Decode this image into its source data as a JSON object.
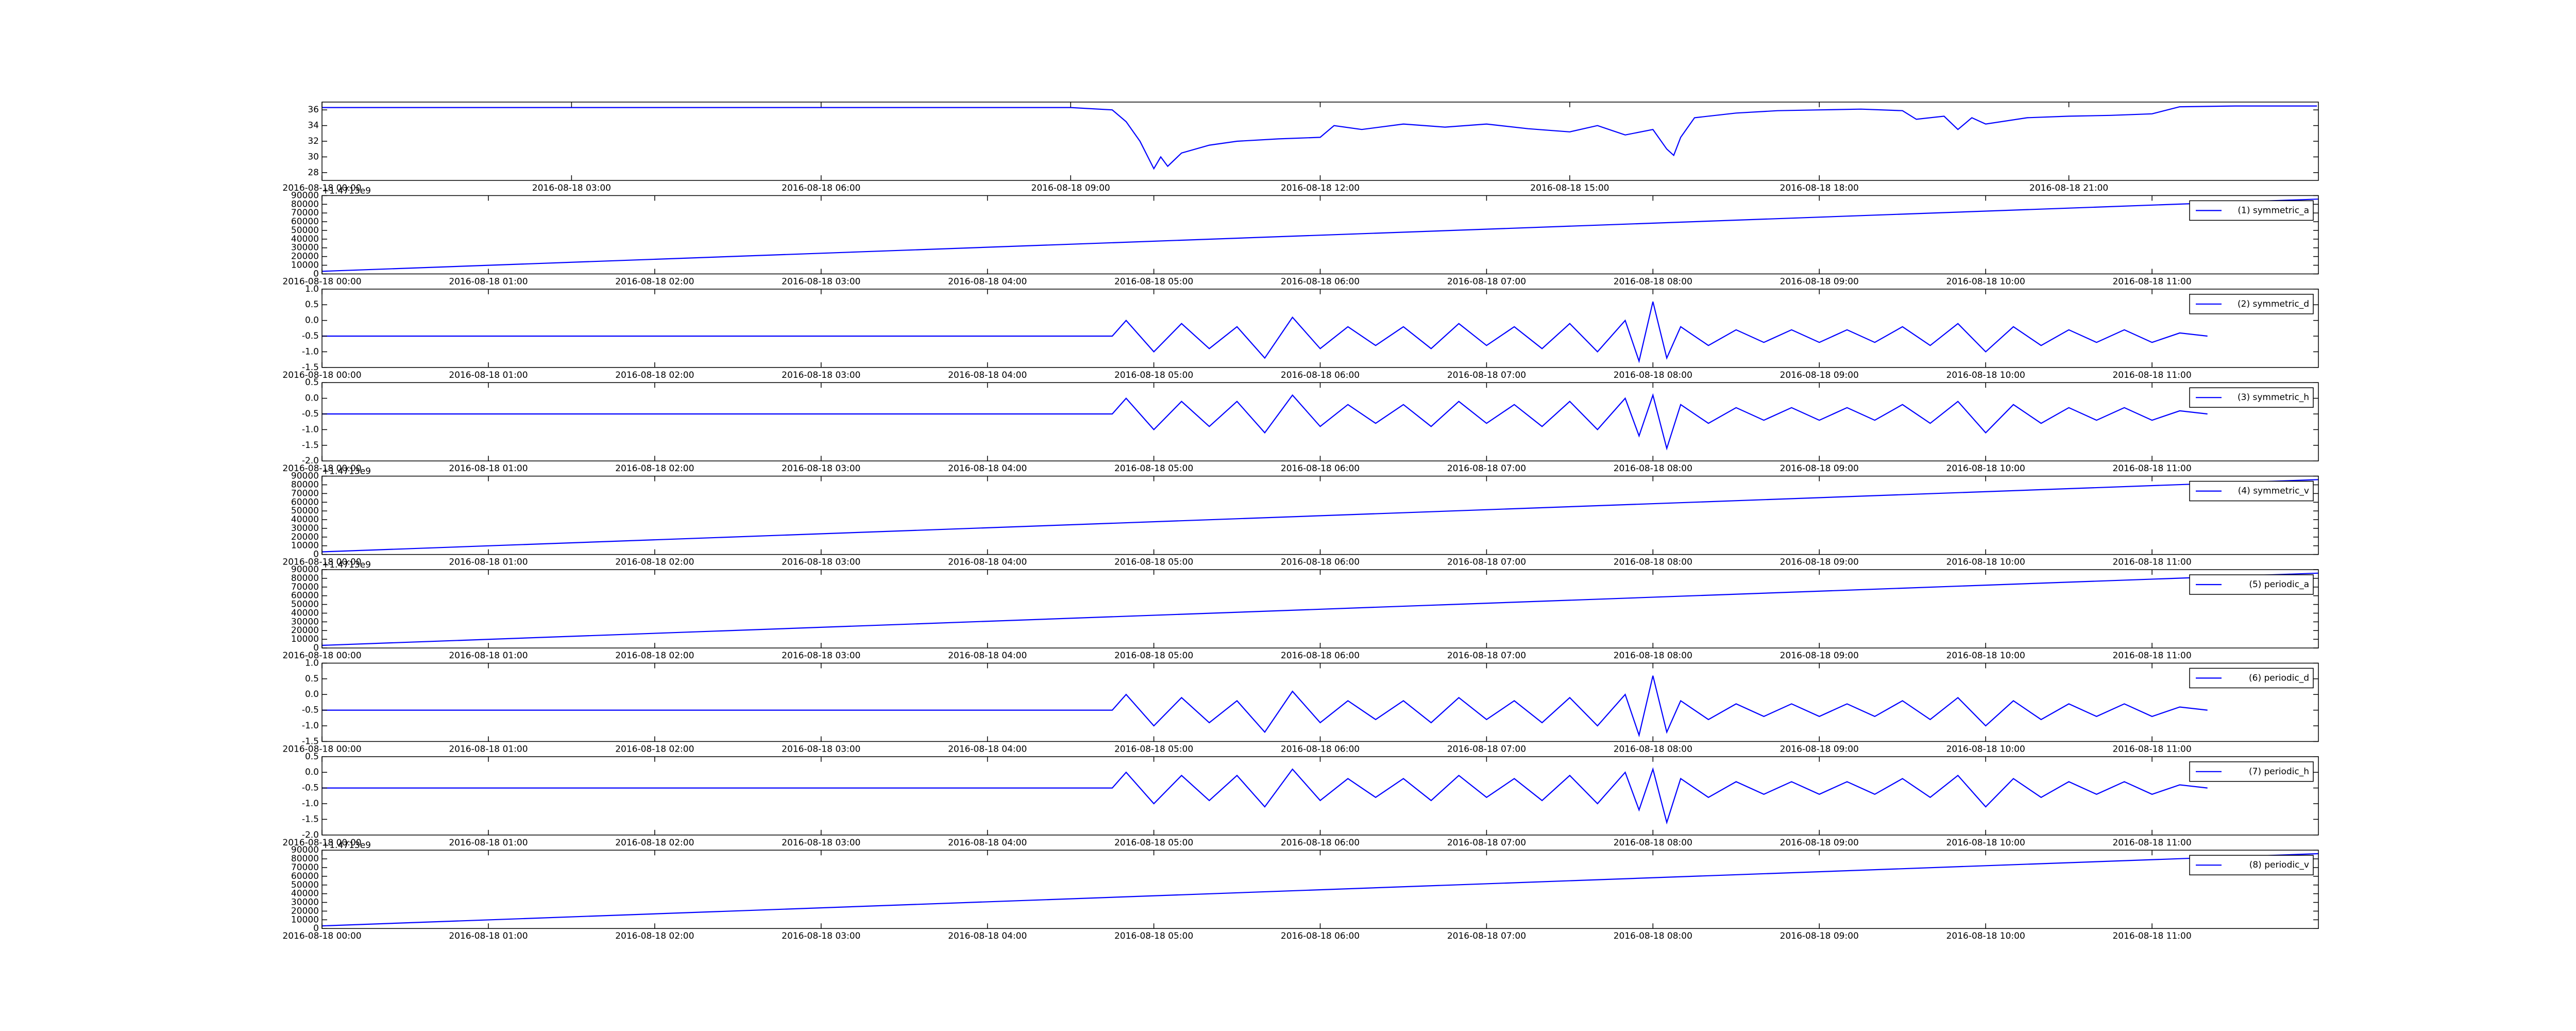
{
  "chart_data": [
    {
      "type": "line",
      "x": [
        "2016-08-18 00:00",
        "2016-08-18 09:00",
        "2016-08-18 09:30",
        "2016-08-18 09:40",
        "2016-08-18 09:50",
        "2016-08-18 10:00",
        "2016-08-18 10:05",
        "2016-08-18 10:10",
        "2016-08-18 10:20",
        "2016-08-18 10:40",
        "2016-08-18 11:00",
        "2016-08-18 11:30",
        "2016-08-18 12:00",
        "2016-08-18 12:10",
        "2016-08-18 12:30",
        "2016-08-18 13:00",
        "2016-08-18 13:30",
        "2016-08-18 14:00",
        "2016-08-18 14:30",
        "2016-08-18 15:00",
        "2016-08-18 15:20",
        "2016-08-18 15:40",
        "2016-08-18 16:00",
        "2016-08-18 16:10",
        "2016-08-18 16:15",
        "2016-08-18 16:20",
        "2016-08-18 16:30",
        "2016-08-18 17:00",
        "2016-08-18 17:30",
        "2016-08-18 18:00",
        "2016-08-18 18:30",
        "2016-08-18 19:00",
        "2016-08-18 19:10",
        "2016-08-18 19:30",
        "2016-08-18 19:40",
        "2016-08-18 19:50",
        "2016-08-18 20:00",
        "2016-08-18 20:30",
        "2016-08-18 21:00",
        "2016-08-18 21:30",
        "2016-08-18 22:00",
        "2016-08-18 22:20",
        "2016-08-18 23:00",
        "2016-08-18 23:59"
      ],
      "series": [
        {
          "color": "#0000ff",
          "values": [
            36.3,
            36.3,
            36.0,
            34.5,
            32,
            28.5,
            30,
            28.8,
            30.5,
            31.5,
            32,
            32.3,
            32.5,
            34,
            33.5,
            34.2,
            33.8,
            34.2,
            33.6,
            33.2,
            34,
            32.8,
            33.5,
            31,
            30.2,
            32.5,
            35,
            35.6,
            35.9,
            36,
            36.1,
            35.9,
            34.8,
            35.2,
            33.5,
            35,
            34.2,
            35,
            35.2,
            35.3,
            35.5,
            36.4,
            36.5,
            36.5
          ]
        }
      ],
      "xlim": [
        "2016-08-18 00:00",
        "2016-08-19 00:00"
      ],
      "xticks": [
        "2016-08-18 00:00",
        "2016-08-18 03:00",
        "2016-08-18 06:00",
        "2016-08-18 09:00",
        "2016-08-18 12:00",
        "2016-08-18 15:00",
        "2016-08-18 18:00",
        "2016-08-18 21:00"
      ],
      "ylim": [
        27,
        37
      ],
      "yticks": [
        28,
        30,
        32,
        34,
        36
      ]
    },
    {
      "type": "line",
      "x": [
        "2016-08-18 00:00",
        "2016-08-18 12:00"
      ],
      "series": [
        {
          "name": "(1) symmetric_a",
          "color": "#0000ff",
          "values": [
            3000,
            86000
          ]
        }
      ],
      "offset_text": "+1.4713e9",
      "legend": "upper right",
      "xlim": [
        "2016-08-18 00:00",
        "2016-08-18 12:00"
      ],
      "xticks": [
        "2016-08-18 00:00",
        "2016-08-18 01:00",
        "2016-08-18 02:00",
        "2016-08-18 03:00",
        "2016-08-18 04:00",
        "2016-08-18 05:00",
        "2016-08-18 06:00",
        "2016-08-18 07:00",
        "2016-08-18 08:00",
        "2016-08-18 09:00",
        "2016-08-18 10:00",
        "2016-08-18 11:00"
      ],
      "ylim": [
        0,
        90000
      ],
      "yticks": [
        0,
        10000,
        20000,
        30000,
        40000,
        50000,
        60000,
        70000,
        80000,
        90000
      ]
    },
    {
      "type": "line",
      "x": [
        "2016-08-18 00:00",
        "2016-08-18 04:45",
        "2016-08-18 04:50",
        "2016-08-18 05:00",
        "2016-08-18 05:10",
        "2016-08-18 05:20",
        "2016-08-18 05:30",
        "2016-08-18 05:40",
        "2016-08-18 05:50",
        "2016-08-18 06:00",
        "2016-08-18 06:10",
        "2016-08-18 06:20",
        "2016-08-18 06:30",
        "2016-08-18 06:40",
        "2016-08-18 06:50",
        "2016-08-18 07:00",
        "2016-08-18 07:10",
        "2016-08-18 07:20",
        "2016-08-18 07:30",
        "2016-08-18 07:40",
        "2016-08-18 07:50",
        "2016-08-18 07:55",
        "2016-08-18 08:00",
        "2016-08-18 08:05",
        "2016-08-18 08:10",
        "2016-08-18 08:20",
        "2016-08-18 08:30",
        "2016-08-18 08:40",
        "2016-08-18 08:50",
        "2016-08-18 09:00",
        "2016-08-18 09:10",
        "2016-08-18 09:20",
        "2016-08-18 09:30",
        "2016-08-18 09:40",
        "2016-08-18 09:50",
        "2016-08-18 10:00",
        "2016-08-18 10:10",
        "2016-08-18 10:20",
        "2016-08-18 10:30",
        "2016-08-18 10:40",
        "2016-08-18 10:50",
        "2016-08-18 11:00",
        "2016-08-18 11:10",
        "2016-08-18 11:20"
      ],
      "series": [
        {
          "name": "(2) symmetric_d",
          "color": "#0000ff",
          "values": [
            -0.5,
            -0.5,
            0.0,
            -1.0,
            -0.1,
            -0.9,
            -0.2,
            -1.2,
            0.1,
            -0.9,
            -0.2,
            -0.8,
            -0.2,
            -0.9,
            -0.1,
            -0.8,
            -0.2,
            -0.9,
            -0.1,
            -1.0,
            0.0,
            -1.3,
            0.6,
            -1.2,
            -0.2,
            -0.8,
            -0.3,
            -0.7,
            -0.3,
            -0.7,
            -0.3,
            -0.7,
            -0.2,
            -0.8,
            -0.1,
            -1.0,
            -0.2,
            -0.8,
            -0.3,
            -0.7,
            -0.3,
            -0.7,
            -0.4,
            -0.5
          ]
        }
      ],
      "legend": "upper right",
      "xlim": [
        "2016-08-18 00:00",
        "2016-08-18 12:00"
      ],
      "xticks": [
        "2016-08-18 00:00",
        "2016-08-18 01:00",
        "2016-08-18 02:00",
        "2016-08-18 03:00",
        "2016-08-18 04:00",
        "2016-08-18 05:00",
        "2016-08-18 06:00",
        "2016-08-18 07:00",
        "2016-08-18 08:00",
        "2016-08-18 09:00",
        "2016-08-18 10:00",
        "2016-08-18 11:00"
      ],
      "ylim": [
        -1.5,
        1.0
      ],
      "yticks": [
        {
          "value": -1.5,
          "label": "-1.5"
        },
        {
          "value": -1,
          "label": "-1.0"
        },
        {
          "value": -0.5,
          "label": "-0.5"
        },
        {
          "value": 0,
          "label": "0.0"
        },
        {
          "value": 0.5,
          "label": "0.5"
        },
        {
          "value": 1,
          "label": "1.0"
        }
      ]
    },
    {
      "type": "line",
      "x": [
        "2016-08-18 00:00",
        "2016-08-18 04:45",
        "2016-08-18 04:50",
        "2016-08-18 05:00",
        "2016-08-18 05:10",
        "2016-08-18 05:20",
        "2016-08-18 05:30",
        "2016-08-18 05:40",
        "2016-08-18 05:50",
        "2016-08-18 06:00",
        "2016-08-18 06:10",
        "2016-08-18 06:20",
        "2016-08-18 06:30",
        "2016-08-18 06:40",
        "2016-08-18 06:50",
        "2016-08-18 07:00",
        "2016-08-18 07:10",
        "2016-08-18 07:20",
        "2016-08-18 07:30",
        "2016-08-18 07:40",
        "2016-08-18 07:50",
        "2016-08-18 07:55",
        "2016-08-18 08:00",
        "2016-08-18 08:05",
        "2016-08-18 08:10",
        "2016-08-18 08:20",
        "2016-08-18 08:30",
        "2016-08-18 08:40",
        "2016-08-18 08:50",
        "2016-08-18 09:00",
        "2016-08-18 09:10",
        "2016-08-18 09:20",
        "2016-08-18 09:30",
        "2016-08-18 09:40",
        "2016-08-18 09:50",
        "2016-08-18 10:00",
        "2016-08-18 10:10",
        "2016-08-18 10:20",
        "2016-08-18 10:30",
        "2016-08-18 10:40",
        "2016-08-18 10:50",
        "2016-08-18 11:00",
        "2016-08-18 11:10",
        "2016-08-18 11:20"
      ],
      "series": [
        {
          "name": "(3) symmetric_h",
          "color": "#0000ff",
          "values": [
            -0.5,
            -0.5,
            0.0,
            -1.0,
            -0.1,
            -0.9,
            -0.1,
            -1.1,
            0.1,
            -0.9,
            -0.2,
            -0.8,
            -0.2,
            -0.9,
            -0.1,
            -0.8,
            -0.2,
            -0.9,
            -0.1,
            -1.0,
            0.0,
            -1.2,
            0.1,
            -1.6,
            -0.2,
            -0.8,
            -0.3,
            -0.7,
            -0.3,
            -0.7,
            -0.3,
            -0.7,
            -0.2,
            -0.8,
            -0.1,
            -1.1,
            -0.2,
            -0.8,
            -0.3,
            -0.7,
            -0.3,
            -0.7,
            -0.4,
            -0.5
          ]
        }
      ],
      "legend": "upper right",
      "xlim": [
        "2016-08-18 00:00",
        "2016-08-18 12:00"
      ],
      "xticks": [
        "2016-08-18 00:00",
        "2016-08-18 01:00",
        "2016-08-18 02:00",
        "2016-08-18 03:00",
        "2016-08-18 04:00",
        "2016-08-18 05:00",
        "2016-08-18 06:00",
        "2016-08-18 07:00",
        "2016-08-18 08:00",
        "2016-08-18 09:00",
        "2016-08-18 10:00",
        "2016-08-18 11:00"
      ],
      "ylim": [
        -2.0,
        0.5
      ],
      "yticks": [
        {
          "value": -2,
          "label": "-2.0"
        },
        {
          "value": -1.5,
          "label": "-1.5"
        },
        {
          "value": -1,
          "label": "-1.0"
        },
        {
          "value": -0.5,
          "label": "-0.5"
        },
        {
          "value": 0,
          "label": "0.0"
        },
        {
          "value": 0.5,
          "label": "0.5"
        }
      ]
    },
    {
      "type": "line",
      "x": [
        "2016-08-18 00:00",
        "2016-08-18 12:00"
      ],
      "series": [
        {
          "name": "(4) symmetric_v",
          "color": "#0000ff",
          "values": [
            3000,
            86000
          ]
        }
      ],
      "offset_text": "+1.4713e9",
      "legend": "upper right",
      "xlim": [
        "2016-08-18 00:00",
        "2016-08-18 12:00"
      ],
      "xticks": [
        "2016-08-18 00:00",
        "2016-08-18 01:00",
        "2016-08-18 02:00",
        "2016-08-18 03:00",
        "2016-08-18 04:00",
        "2016-08-18 05:00",
        "2016-08-18 06:00",
        "2016-08-18 07:00",
        "2016-08-18 08:00",
        "2016-08-18 09:00",
        "2016-08-18 10:00",
        "2016-08-18 11:00"
      ],
      "ylim": [
        0,
        90000
      ],
      "yticks": [
        0,
        10000,
        20000,
        30000,
        40000,
        50000,
        60000,
        70000,
        80000,
        90000
      ]
    },
    {
      "type": "line",
      "x": [
        "2016-08-18 00:00",
        "2016-08-18 12:00"
      ],
      "series": [
        {
          "name": "(5) periodic_a",
          "color": "#0000ff",
          "values": [
            3000,
            86000
          ]
        }
      ],
      "offset_text": "+1.4713e9",
      "legend": "upper right",
      "xlim": [
        "2016-08-18 00:00",
        "2016-08-18 12:00"
      ],
      "xticks": [
        "2016-08-18 00:00",
        "2016-08-18 01:00",
        "2016-08-18 02:00",
        "2016-08-18 03:00",
        "2016-08-18 04:00",
        "2016-08-18 05:00",
        "2016-08-18 06:00",
        "2016-08-18 07:00",
        "2016-08-18 08:00",
        "2016-08-18 09:00",
        "2016-08-18 10:00",
        "2016-08-18 11:00"
      ],
      "ylim": [
        0,
        90000
      ],
      "yticks": [
        0,
        10000,
        20000,
        30000,
        40000,
        50000,
        60000,
        70000,
        80000,
        90000
      ]
    },
    {
      "type": "line",
      "x": [
        "2016-08-18 00:00",
        "2016-08-18 04:45",
        "2016-08-18 04:50",
        "2016-08-18 05:00",
        "2016-08-18 05:10",
        "2016-08-18 05:20",
        "2016-08-18 05:30",
        "2016-08-18 05:40",
        "2016-08-18 05:50",
        "2016-08-18 06:00",
        "2016-08-18 06:10",
        "2016-08-18 06:20",
        "2016-08-18 06:30",
        "2016-08-18 06:40",
        "2016-08-18 06:50",
        "2016-08-18 07:00",
        "2016-08-18 07:10",
        "2016-08-18 07:20",
        "2016-08-18 07:30",
        "2016-08-18 07:40",
        "2016-08-18 07:50",
        "2016-08-18 07:55",
        "2016-08-18 08:00",
        "2016-08-18 08:05",
        "2016-08-18 08:10",
        "2016-08-18 08:20",
        "2016-08-18 08:30",
        "2016-08-18 08:40",
        "2016-08-18 08:50",
        "2016-08-18 09:00",
        "2016-08-18 09:10",
        "2016-08-18 09:20",
        "2016-08-18 09:30",
        "2016-08-18 09:40",
        "2016-08-18 09:50",
        "2016-08-18 10:00",
        "2016-08-18 10:10",
        "2016-08-18 10:20",
        "2016-08-18 10:30",
        "2016-08-18 10:40",
        "2016-08-18 10:50",
        "2016-08-18 11:00",
        "2016-08-18 11:10",
        "2016-08-18 11:20"
      ],
      "series": [
        {
          "name": "(6) periodic_d",
          "color": "#0000ff",
          "values": [
            -0.5,
            -0.5,
            0.0,
            -1.0,
            -0.1,
            -0.9,
            -0.2,
            -1.2,
            0.1,
            -0.9,
            -0.2,
            -0.8,
            -0.2,
            -0.9,
            -0.1,
            -0.8,
            -0.2,
            -0.9,
            -0.1,
            -1.0,
            0.0,
            -1.3,
            0.6,
            -1.2,
            -0.2,
            -0.8,
            -0.3,
            -0.7,
            -0.3,
            -0.7,
            -0.3,
            -0.7,
            -0.2,
            -0.8,
            -0.1,
            -1.0,
            -0.2,
            -0.8,
            -0.3,
            -0.7,
            -0.3,
            -0.7,
            -0.4,
            -0.5
          ]
        }
      ],
      "legend": "upper right",
      "xlim": [
        "2016-08-18 00:00",
        "2016-08-18 12:00"
      ],
      "xticks": [
        "2016-08-18 00:00",
        "2016-08-18 01:00",
        "2016-08-18 02:00",
        "2016-08-18 03:00",
        "2016-08-18 04:00",
        "2016-08-18 05:00",
        "2016-08-18 06:00",
        "2016-08-18 07:00",
        "2016-08-18 08:00",
        "2016-08-18 09:00",
        "2016-08-18 10:00",
        "2016-08-18 11:00"
      ],
      "ylim": [
        -1.5,
        1.0
      ],
      "yticks": [
        {
          "value": -1.5,
          "label": "-1.5"
        },
        {
          "value": -1,
          "label": "-1.0"
        },
        {
          "value": -0.5,
          "label": "-0.5"
        },
        {
          "value": 0,
          "label": "0.0"
        },
        {
          "value": 0.5,
          "label": "0.5"
        },
        {
          "value": 1,
          "label": "1.0"
        }
      ]
    },
    {
      "type": "line",
      "x": [
        "2016-08-18 00:00",
        "2016-08-18 04:45",
        "2016-08-18 04:50",
        "2016-08-18 05:00",
        "2016-08-18 05:10",
        "2016-08-18 05:20",
        "2016-08-18 05:30",
        "2016-08-18 05:40",
        "2016-08-18 05:50",
        "2016-08-18 06:00",
        "2016-08-18 06:10",
        "2016-08-18 06:20",
        "2016-08-18 06:30",
        "2016-08-18 06:40",
        "2016-08-18 06:50",
        "2016-08-18 07:00",
        "2016-08-18 07:10",
        "2016-08-18 07:20",
        "2016-08-18 07:30",
        "2016-08-18 07:40",
        "2016-08-18 07:50",
        "2016-08-18 07:55",
        "2016-08-18 08:00",
        "2016-08-18 08:05",
        "2016-08-18 08:10",
        "2016-08-18 08:20",
        "2016-08-18 08:30",
        "2016-08-18 08:40",
        "2016-08-18 08:50",
        "2016-08-18 09:00",
        "2016-08-18 09:10",
        "2016-08-18 09:20",
        "2016-08-18 09:30",
        "2016-08-18 09:40",
        "2016-08-18 09:50",
        "2016-08-18 10:00",
        "2016-08-18 10:10",
        "2016-08-18 10:20",
        "2016-08-18 10:30",
        "2016-08-18 10:40",
        "2016-08-18 10:50",
        "2016-08-18 11:00",
        "2016-08-18 11:10",
        "2016-08-18 11:20"
      ],
      "series": [
        {
          "name": "(7) periodic_h",
          "color": "#0000ff",
          "values": [
            -0.5,
            -0.5,
            0.0,
            -1.0,
            -0.1,
            -0.9,
            -0.1,
            -1.1,
            0.1,
            -0.9,
            -0.2,
            -0.8,
            -0.2,
            -0.9,
            -0.1,
            -0.8,
            -0.2,
            -0.9,
            -0.1,
            -1.0,
            0.0,
            -1.2,
            0.1,
            -1.6,
            -0.2,
            -0.8,
            -0.3,
            -0.7,
            -0.3,
            -0.7,
            -0.3,
            -0.7,
            -0.2,
            -0.8,
            -0.1,
            -1.1,
            -0.2,
            -0.8,
            -0.3,
            -0.7,
            -0.3,
            -0.7,
            -0.4,
            -0.5
          ]
        }
      ],
      "legend": "upper right",
      "xlim": [
        "2016-08-18 00:00",
        "2016-08-18 12:00"
      ],
      "xticks": [
        "2016-08-18 00:00",
        "2016-08-18 01:00",
        "2016-08-18 02:00",
        "2016-08-18 03:00",
        "2016-08-18 04:00",
        "2016-08-18 05:00",
        "2016-08-18 06:00",
        "2016-08-18 07:00",
        "2016-08-18 08:00",
        "2016-08-18 09:00",
        "2016-08-18 10:00",
        "2016-08-18 11:00"
      ],
      "ylim": [
        -2.0,
        0.5
      ],
      "yticks": [
        {
          "value": -2,
          "label": "-2.0"
        },
        {
          "value": -1.5,
          "label": "-1.5"
        },
        {
          "value": -1,
          "label": "-1.0"
        },
        {
          "value": -0.5,
          "label": "-0.5"
        },
        {
          "value": 0,
          "label": "0.0"
        },
        {
          "value": 0.5,
          "label": "0.5"
        }
      ]
    },
    {
      "type": "line",
      "x": [
        "2016-08-18 00:00",
        "2016-08-18 12:00"
      ],
      "series": [
        {
          "name": "(8) periodic_v",
          "color": "#0000ff",
          "values": [
            3000,
            86000
          ]
        }
      ],
      "offset_text": "+1.4713e9",
      "legend": "upper right",
      "xlim": [
        "2016-08-18 00:00",
        "2016-08-18 12:00"
      ],
      "xticks": [
        "2016-08-18 00:00",
        "2016-08-18 01:00",
        "2016-08-18 02:00",
        "2016-08-18 03:00",
        "2016-08-18 04:00",
        "2016-08-18 05:00",
        "2016-08-18 06:00",
        "2016-08-18 07:00",
        "2016-08-18 08:00",
        "2016-08-18 09:00",
        "2016-08-18 10:00",
        "2016-08-18 11:00"
      ],
      "ylim": [
        0,
        90000
      ],
      "yticks": [
        0,
        10000,
        20000,
        30000,
        40000,
        50000,
        60000,
        70000,
        80000,
        90000
      ]
    }
  ]
}
